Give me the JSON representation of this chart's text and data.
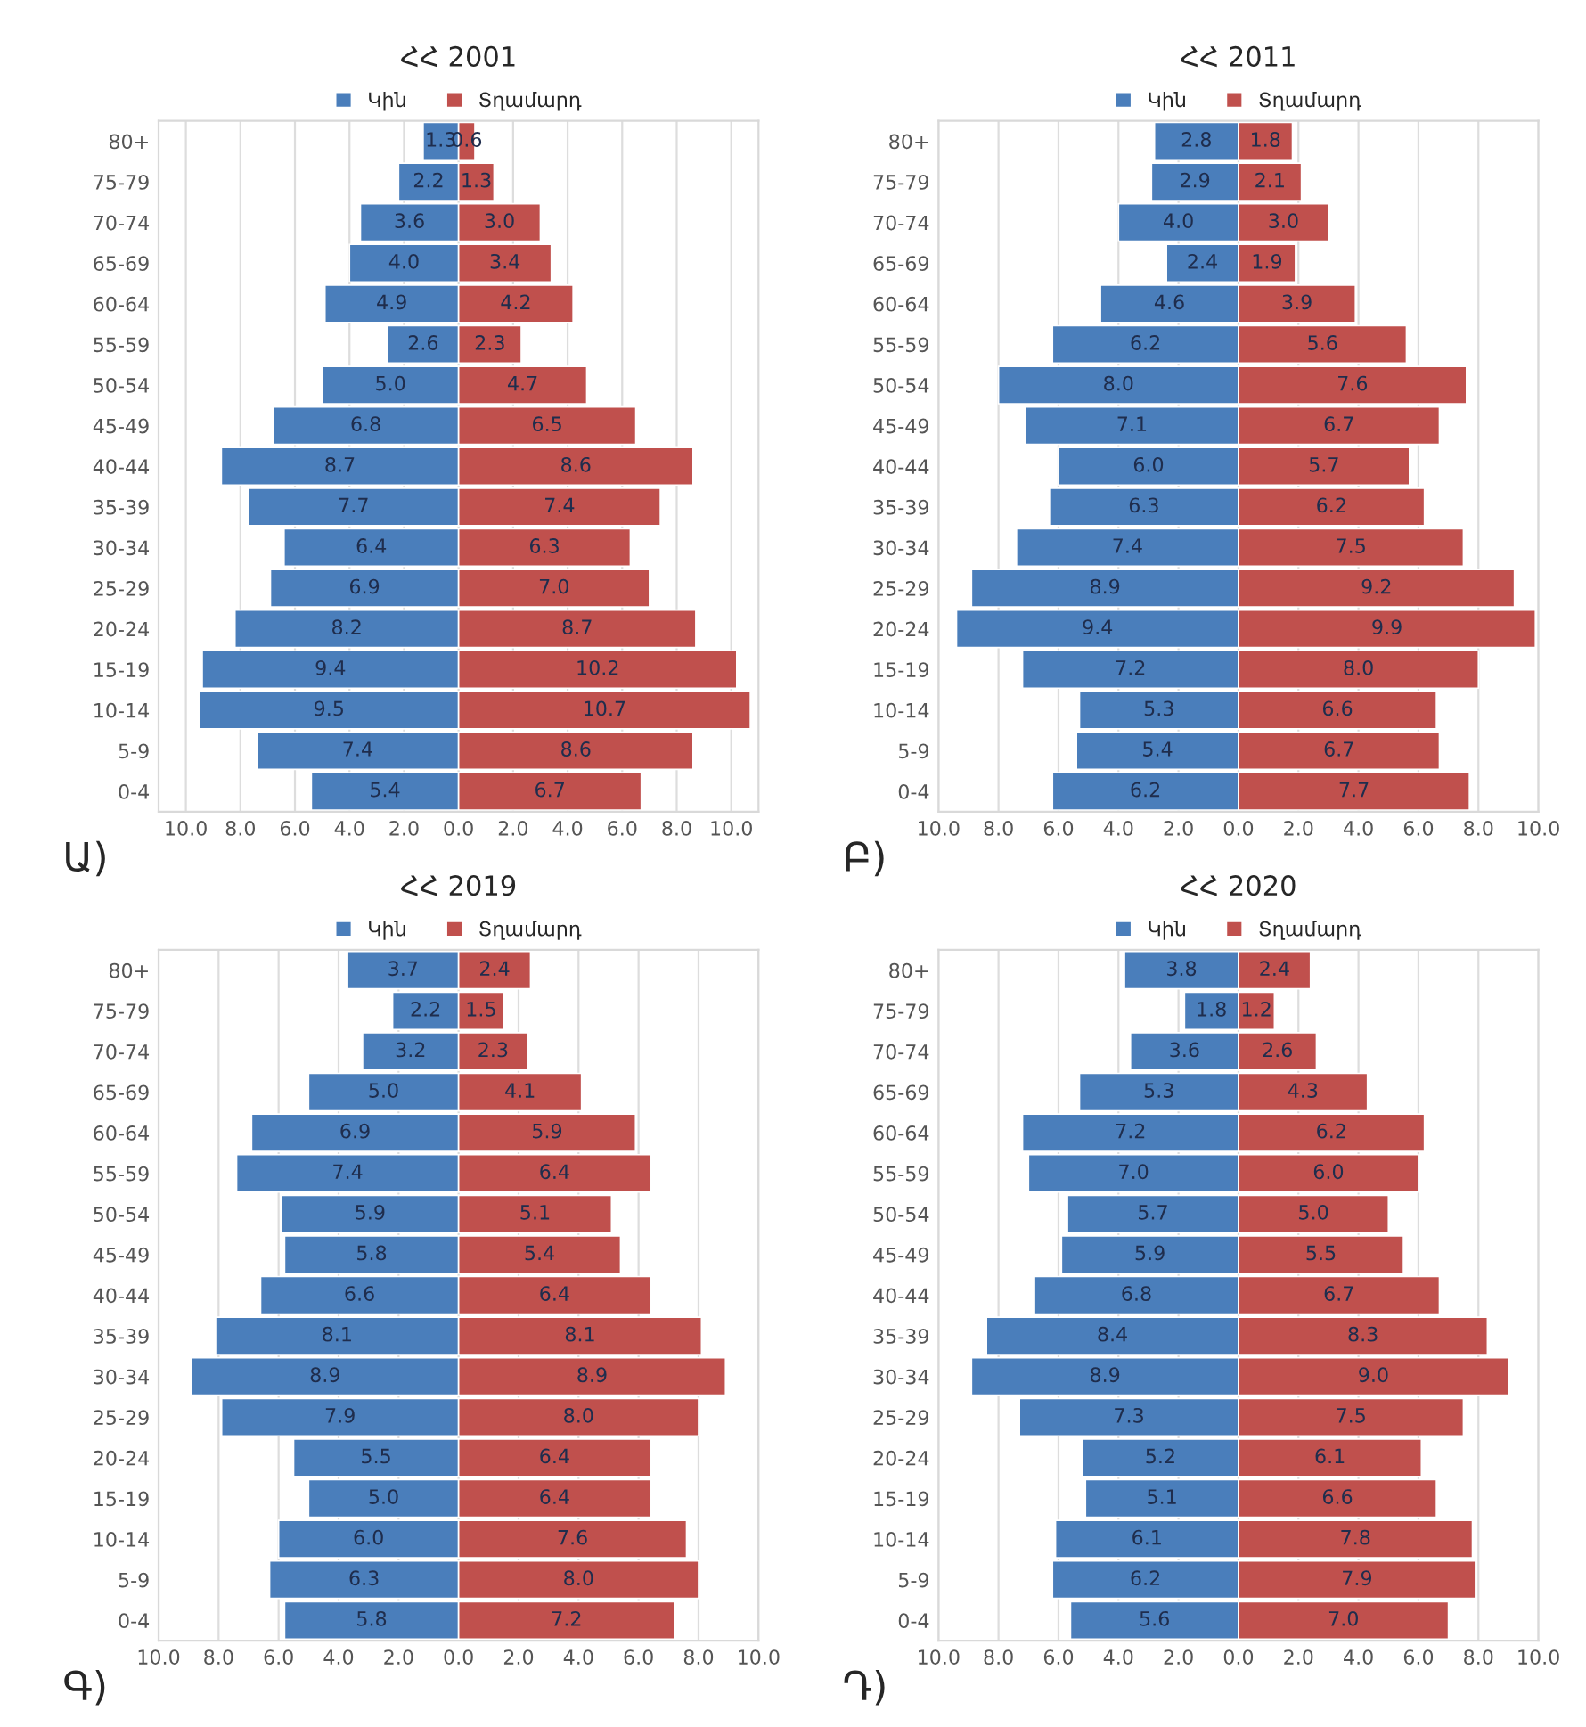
{
  "chart_data": [
    {
      "type": "bar",
      "orientation": "horizontal",
      "title": "ՀՀ 2001",
      "annotations": [
        "Ա)"
      ],
      "legend": "top",
      "grid": "x",
      "categories": [
        "80+",
        "75-79",
        "70-74",
        "65-69",
        "60-64",
        "55-59",
        "50-54",
        "45-49",
        "40-44",
        "35-39",
        "30-34",
        "25-29",
        "20-24",
        "15-19",
        "10-14",
        "5-9",
        "0-4"
      ],
      "xlim": [
        -11,
        11
      ],
      "xticks": [
        {
          "value": -10,
          "label": "10.0"
        },
        {
          "value": -8,
          "label": "8.0"
        },
        {
          "value": -6,
          "label": "6.0"
        },
        {
          "value": -4,
          "label": "4.0"
        },
        {
          "value": -2,
          "label": "2.0"
        },
        {
          "value": 0,
          "label": "0.0"
        },
        {
          "value": 2,
          "label": "2.0"
        },
        {
          "value": 4,
          "label": "4.0"
        },
        {
          "value": 6,
          "label": "6.0"
        },
        {
          "value": 8,
          "label": "8.0"
        },
        {
          "value": 10,
          "label": "10.0"
        }
      ],
      "series": [
        {
          "name": "Կին",
          "color": "#4a7ebb",
          "values": [
            1.3,
            2.2,
            3.6,
            4.0,
            4.9,
            2.6,
            5.0,
            6.8,
            8.7,
            7.7,
            6.4,
            6.9,
            8.2,
            9.4,
            9.5,
            7.4,
            5.4
          ],
          "base": [
            -1.3,
            -2.2,
            -3.6,
            -4.0,
            -4.9,
            -2.6,
            -5.0,
            -6.8,
            -8.7,
            -7.7,
            -6.4,
            -6.9,
            -8.2,
            -9.4,
            -9.5,
            -7.4,
            -5.4
          ],
          "value_labels": [
            "1.3",
            "2.2",
            "3.6",
            "4.0",
            "4.9",
            "2.6",
            "5.0",
            "6.8",
            "8.7",
            "7.7",
            "6.4",
            "6.9",
            "8.2",
            "9.4",
            "9.5",
            "7.4",
            "5.4"
          ]
        },
        {
          "name": "Տղամարդ",
          "color": "#c0504d",
          "values": [
            0.6,
            1.3,
            3.0,
            3.4,
            4.2,
            2.3,
            4.7,
            6.5,
            8.6,
            7.4,
            6.3,
            7.0,
            8.7,
            10.2,
            10.7,
            8.6,
            6.7
          ],
          "value_labels": [
            "0.6",
            "1.3",
            "3.0",
            "3.4",
            "4.2",
            "2.3",
            "4.7",
            "6.5",
            "8.6",
            "7.4",
            "6.3",
            "7.0",
            "8.7",
            "10.2",
            "10.7",
            "8.6",
            "6.7"
          ]
        }
      ]
    },
    {
      "type": "bar",
      "orientation": "horizontal",
      "title": "ՀՀ 2011",
      "annotations": [
        "Բ)"
      ],
      "legend": "top",
      "grid": "x",
      "categories": [
        "80+",
        "75-79",
        "70-74",
        "65-69",
        "60-64",
        "55-59",
        "50-54",
        "45-49",
        "40-44",
        "35-39",
        "30-34",
        "25-29",
        "20-24",
        "15-19",
        "10-14",
        "5-9",
        "0-4"
      ],
      "xlim": [
        -10,
        10
      ],
      "xticks": [
        {
          "value": -10,
          "label": "10.0"
        },
        {
          "value": -8,
          "label": "8.0"
        },
        {
          "value": -6,
          "label": "6.0"
        },
        {
          "value": -4,
          "label": "4.0"
        },
        {
          "value": -2,
          "label": "2.0"
        },
        {
          "value": 0,
          "label": "0.0"
        },
        {
          "value": 2,
          "label": "2.0"
        },
        {
          "value": 4,
          "label": "4.0"
        },
        {
          "value": 6,
          "label": "6.0"
        },
        {
          "value": 8,
          "label": "8.0"
        },
        {
          "value": 10,
          "label": "10.0"
        }
      ],
      "series": [
        {
          "name": "Կին",
          "color": "#4a7ebb",
          "values": [
            2.8,
            2.9,
            4.0,
            2.4,
            4.6,
            6.2,
            8.0,
            7.1,
            6.0,
            6.3,
            7.4,
            8.9,
            9.4,
            7.2,
            5.3,
            5.4,
            6.2
          ],
          "base": [
            -2.8,
            -2.9,
            -4.0,
            -2.4,
            -4.6,
            -6.2,
            -8.0,
            -7.1,
            -6.0,
            -6.3,
            -7.4,
            -8.9,
            -9.4,
            -7.2,
            -5.3,
            -5.4,
            -6.2
          ],
          "value_labels": [
            "2.8",
            "2.9",
            "4.0",
            "2.4",
            "4.6",
            "6.2",
            "8.0",
            "7.1",
            "6.0",
            "6.3",
            "7.4",
            "8.9",
            "9.4",
            "7.2",
            "5.3",
            "5.4",
            "6.2"
          ]
        },
        {
          "name": "Տղամարդ",
          "color": "#c0504d",
          "values": [
            1.8,
            2.1,
            3.0,
            1.9,
            3.9,
            5.6,
            7.6,
            6.7,
            5.7,
            6.2,
            7.5,
            9.2,
            9.9,
            8.0,
            6.6,
            6.7,
            7.7
          ],
          "value_labels": [
            "1.8",
            "2.1",
            "3.0",
            "1.9",
            "3.9",
            "5.6",
            "7.6",
            "6.7",
            "5.7",
            "6.2",
            "7.5",
            "9.2",
            "9.9",
            "8.0",
            "6.6",
            "6.7",
            "7.7"
          ]
        }
      ]
    },
    {
      "type": "bar",
      "orientation": "horizontal",
      "title": "ՀՀ 2019",
      "annotations": [
        "Գ)"
      ],
      "legend": "top",
      "grid": "x",
      "categories": [
        "80+",
        "75-79",
        "70-74",
        "65-69",
        "60-64",
        "55-59",
        "50-54",
        "45-49",
        "40-44",
        "35-39",
        "30-34",
        "25-29",
        "20-24",
        "15-19",
        "10-14",
        "5-9",
        "0-4"
      ],
      "xlim": [
        -10,
        10
      ],
      "xticks": [
        {
          "value": -10,
          "label": "10.0"
        },
        {
          "value": -8,
          "label": "8.0"
        },
        {
          "value": -6,
          "label": "6.0"
        },
        {
          "value": -4,
          "label": "4.0"
        },
        {
          "value": -2,
          "label": "2.0"
        },
        {
          "value": 0,
          "label": "0.0"
        },
        {
          "value": 2,
          "label": "2.0"
        },
        {
          "value": 4,
          "label": "4.0"
        },
        {
          "value": 6,
          "label": "6.0"
        },
        {
          "value": 8,
          "label": "8.0"
        },
        {
          "value": 10,
          "label": "10.0"
        }
      ],
      "series": [
        {
          "name": "Կին",
          "color": "#4a7ebb",
          "values": [
            3.7,
            2.2,
            3.2,
            5.0,
            6.9,
            7.4,
            5.9,
            5.8,
            6.6,
            8.1,
            8.9,
            7.9,
            5.5,
            5.0,
            6.0,
            6.3,
            5.8
          ],
          "base": [
            -3.7,
            -2.2,
            -3.2,
            -5.0,
            -6.9,
            -7.4,
            -5.9,
            -5.8,
            -6.6,
            -8.1,
            -8.9,
            -7.9,
            -5.5,
            -5.0,
            -6.0,
            -6.3,
            -5.8
          ],
          "value_labels": [
            "3.7",
            "2.2",
            "3.2",
            "5.0",
            "6.9",
            "7.4",
            "5.9",
            "5.8",
            "6.6",
            "8.1",
            "8.9",
            "7.9",
            "5.5",
            "5.0",
            "6.0",
            "6.3",
            "5.8"
          ]
        },
        {
          "name": "Տղամարդ",
          "color": "#c0504d",
          "values": [
            2.4,
            1.5,
            2.3,
            4.1,
            5.9,
            6.4,
            5.1,
            5.4,
            6.4,
            8.1,
            8.9,
            8.0,
            6.4,
            6.4,
            7.6,
            8.0,
            7.2
          ],
          "value_labels": [
            "2.4",
            "1.5",
            "2.3",
            "4.1",
            "5.9",
            "6.4",
            "5.1",
            "5.4",
            "6.4",
            "8.1",
            "8.9",
            "8.0",
            "6.4",
            "6.4",
            "7.6",
            "8.0",
            "7.2"
          ]
        }
      ]
    },
    {
      "type": "bar",
      "orientation": "horizontal",
      "title": "ՀՀ 2020",
      "annotations": [
        "Դ)"
      ],
      "legend": "top",
      "grid": "x",
      "categories": [
        "80+",
        "75-79",
        "70-74",
        "65-69",
        "60-64",
        "55-59",
        "50-54",
        "45-49",
        "40-44",
        "35-39",
        "30-34",
        "25-29",
        "20-24",
        "15-19",
        "10-14",
        "5-9",
        "0-4"
      ],
      "xlim": [
        -10,
        10
      ],
      "xticks": [
        {
          "value": -10,
          "label": "10.0"
        },
        {
          "value": -8,
          "label": "8.0"
        },
        {
          "value": -6,
          "label": "6.0"
        },
        {
          "value": -4,
          "label": "4.0"
        },
        {
          "value": -2,
          "label": "2.0"
        },
        {
          "value": 0,
          "label": "0.0"
        },
        {
          "value": 2,
          "label": "2.0"
        },
        {
          "value": 4,
          "label": "4.0"
        },
        {
          "value": 6,
          "label": "6.0"
        },
        {
          "value": 8,
          "label": "8.0"
        },
        {
          "value": 10,
          "label": "10.0"
        }
      ],
      "series": [
        {
          "name": "Կին",
          "color": "#4a7ebb",
          "values": [
            3.8,
            1.8,
            3.6,
            5.3,
            7.2,
            7.0,
            5.7,
            5.9,
            6.8,
            8.4,
            8.9,
            7.3,
            5.2,
            5.1,
            6.1,
            6.2,
            5.6
          ],
          "base": [
            -3.8,
            -1.8,
            -3.6,
            -5.3,
            -7.2,
            -7.0,
            -5.7,
            -5.9,
            -6.8,
            -8.4,
            -8.9,
            -7.3,
            -5.2,
            -5.1,
            -6.1,
            -6.2,
            -5.6
          ],
          "value_labels": [
            "3.8",
            "1.8",
            "3.6",
            "5.3",
            "7.2",
            "7.0",
            "5.7",
            "5.9",
            "6.8",
            "8.4",
            "8.9",
            "7.3",
            "5.2",
            "5.1",
            "6.1",
            "6.2",
            "5.6"
          ]
        },
        {
          "name": "Տղամարդ",
          "color": "#c0504d",
          "values": [
            2.4,
            1.2,
            2.6,
            4.3,
            6.2,
            6.0,
            5.0,
            5.5,
            6.7,
            8.3,
            9.0,
            7.5,
            6.1,
            6.6,
            7.8,
            7.9,
            7.0
          ],
          "value_labels": [
            "2.4",
            "1.2",
            "2.6",
            "4.3",
            "6.2",
            "6.0",
            "5.0",
            "5.5",
            "6.7",
            "8.3",
            "9.0",
            "7.5",
            "6.1",
            "6.6",
            "7.8",
            "7.9",
            "7.0"
          ]
        }
      ]
    }
  ]
}
